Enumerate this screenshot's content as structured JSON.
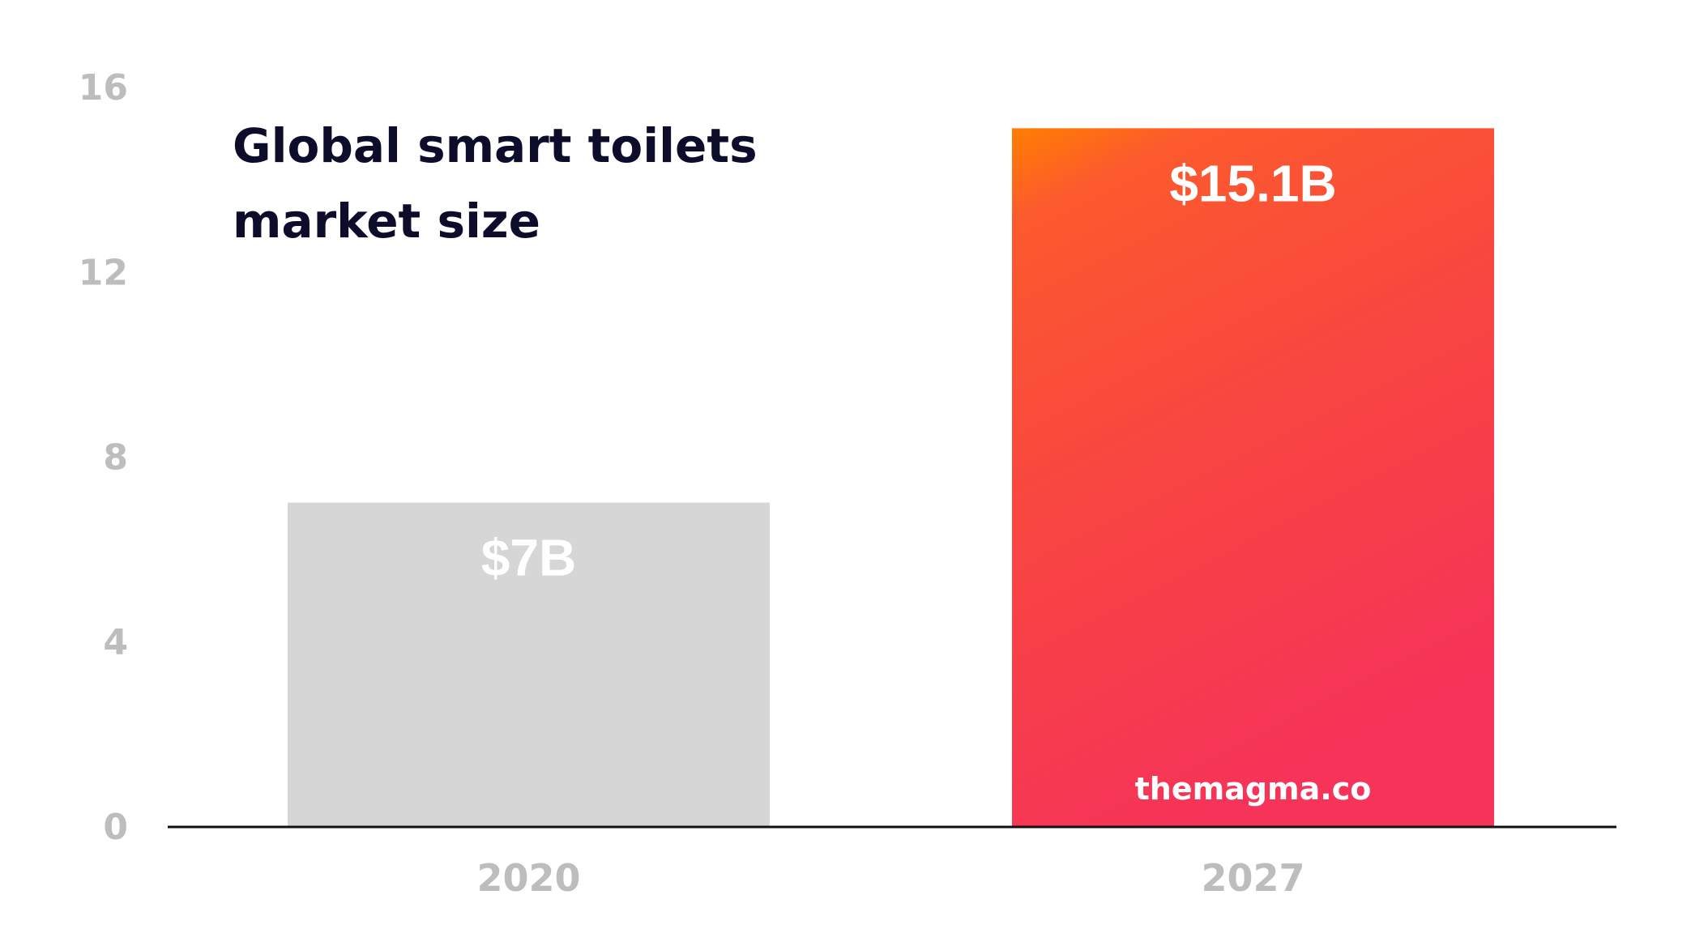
{
  "chart_data": {
    "type": "bar",
    "title_lines": [
      "Global smart toilets",
      "market size"
    ],
    "categories": [
      "2020",
      "2027"
    ],
    "values": [
      7,
      15.1
    ],
    "data_labels": [
      "$7B",
      "$15.1B"
    ],
    "ylim": [
      0,
      16
    ],
    "yticks": [
      0,
      4,
      8,
      12,
      16
    ],
    "ytick_labels": [
      "0",
      "4",
      "8",
      "12",
      "16"
    ],
    "xlabel": "",
    "ylabel": "",
    "grid": false,
    "legend": "none",
    "watermark": "themagma.co",
    "colors": {
      "bar_2020": "#d6d6d6",
      "bar_2027_top": "#ff7f00",
      "bar_2027_mid": "#fb5633",
      "bar_2027_bottom": "#f63358",
      "axis": "#111111",
      "tick_text": "#bdbdbd",
      "title": "#0d0d2b"
    }
  }
}
